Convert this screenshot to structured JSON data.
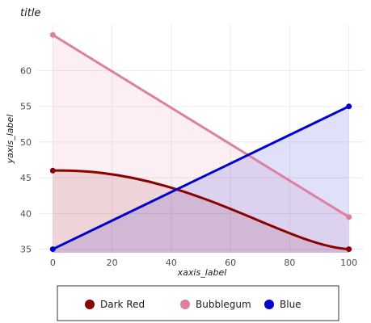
{
  "chart_data": {
    "type": "line",
    "title": "title",
    "xlabel": "xaxis_label",
    "ylabel": "yaxis_label",
    "xlim": [
      -5,
      105
    ],
    "ylim": [
      34.5,
      66.5
    ],
    "x_ticks": [
      0,
      20,
      40,
      60,
      80,
      100
    ],
    "y_ticks": [
      35,
      40,
      45,
      50,
      55,
      60
    ],
    "grid": true,
    "legend_position": "bottom",
    "series": [
      {
        "name": "Dark Red",
        "color": "#8b0000",
        "x": [
          0,
          100
        ],
        "y": [
          46.0,
          35.0
        ],
        "shape": "concave"
      },
      {
        "name": "Bubblegum",
        "color": "#de7fa1",
        "x": [
          0,
          100
        ],
        "y": [
          65.0,
          39.5
        ],
        "shape": "linear"
      },
      {
        "name": "Blue",
        "color": "#0000cd",
        "x": [
          0,
          100
        ],
        "y": [
          35.0,
          55.0
        ],
        "shape": "linear"
      }
    ]
  }
}
